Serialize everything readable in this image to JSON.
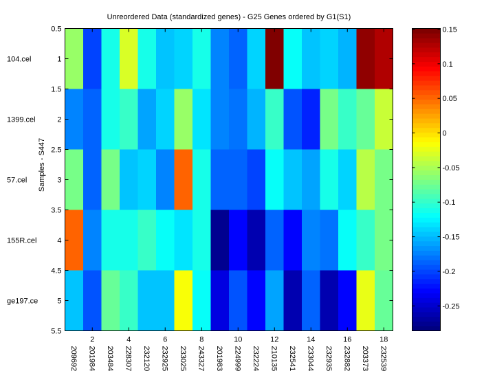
{
  "chart_data": {
    "type": "heatmap",
    "title": "Unreordered Data (standardized genes) - G25 Genes ordered by G1(S1)",
    "xlabel": "",
    "ylabel": "Samples - S447",
    "colormap": "jet",
    "clim": [
      -0.286,
      0.151
    ],
    "xlim": [
      0.5,
      18.5
    ],
    "ylim": [
      0.5,
      5.5
    ],
    "x_ticks": [
      "2",
      "4",
      "6",
      "8",
      "10",
      "12",
      "14",
      "16",
      "18"
    ],
    "x_tick_values": [
      2,
      4,
      6,
      8,
      10,
      12,
      14,
      16,
      18
    ],
    "y_ticks": [
      "0.5",
      "1",
      "1.5",
      "2",
      "2.5",
      "3",
      "3.5",
      "4",
      "4.5",
      "5",
      "5.5"
    ],
    "y_tick_values": [
      0.5,
      1,
      1.5,
      2,
      2.5,
      3,
      3.5,
      4,
      4.5,
      5,
      5.5
    ],
    "columns": [
      "209692_",
      "201984_",
      "203484_",
      "228307_",
      "232120_",
      "232925_",
      "233025_",
      "243327_",
      "201983_",
      "224999_",
      "232224_",
      "210135_",
      "232541_",
      "233044_",
      "232935_",
      "232882_",
      "203373_",
      "232539_"
    ],
    "rows": [
      "104.cel",
      "1399.cel",
      "57.cel",
      "155R.cel",
      "ge197.ce"
    ],
    "values": [
      [
        -0.054,
        -0.204,
        -0.111,
        -0.027,
        -0.115,
        -0.149,
        -0.136,
        -0.111,
        -0.17,
        -0.19,
        -0.136,
        0.151,
        -0.122,
        -0.149,
        -0.136,
        -0.156,
        0.144,
        0.13
      ],
      [
        -0.17,
        -0.19,
        -0.115,
        -0.095,
        -0.163,
        -0.136,
        -0.054,
        -0.129,
        -0.17,
        -0.177,
        -0.156,
        -0.095,
        -0.197,
        -0.211,
        -0.068,
        -0.095,
        -0.081,
        -0.04
      ],
      [
        -0.074,
        -0.184,
        -0.074,
        -0.149,
        -0.136,
        -0.17,
        0.055,
        -0.111,
        -0.19,
        -0.184,
        -0.204,
        -0.122,
        -0.149,
        -0.163,
        -0.111,
        -0.136,
        -0.047,
        -0.068
      ],
      [
        0.055,
        -0.17,
        -0.111,
        -0.111,
        -0.095,
        -0.122,
        -0.129,
        -0.111,
        -0.279,
        -0.231,
        -0.265,
        -0.19,
        -0.231,
        -0.17,
        -0.177,
        -0.122,
        -0.095,
        -0.074
      ],
      [
        -0.143,
        -0.197,
        -0.081,
        -0.095,
        -0.143,
        -0.143,
        -0.013,
        -0.122,
        -0.245,
        -0.197,
        -0.231,
        -0.163,
        -0.259,
        -0.184,
        -0.265,
        -0.225,
        -0.02,
        -0.081
      ]
    ],
    "colorbar": {
      "ticks": [
        "0.15",
        "0.1",
        "0.05",
        "0",
        "-0.05",
        "-0.1",
        "-0.15",
        "-0.2",
        "-0.25"
      ],
      "tick_values": [
        0.15,
        0.1,
        0.05,
        0,
        -0.05,
        -0.1,
        -0.15,
        -0.2,
        -0.25
      ],
      "location": "right"
    }
  }
}
